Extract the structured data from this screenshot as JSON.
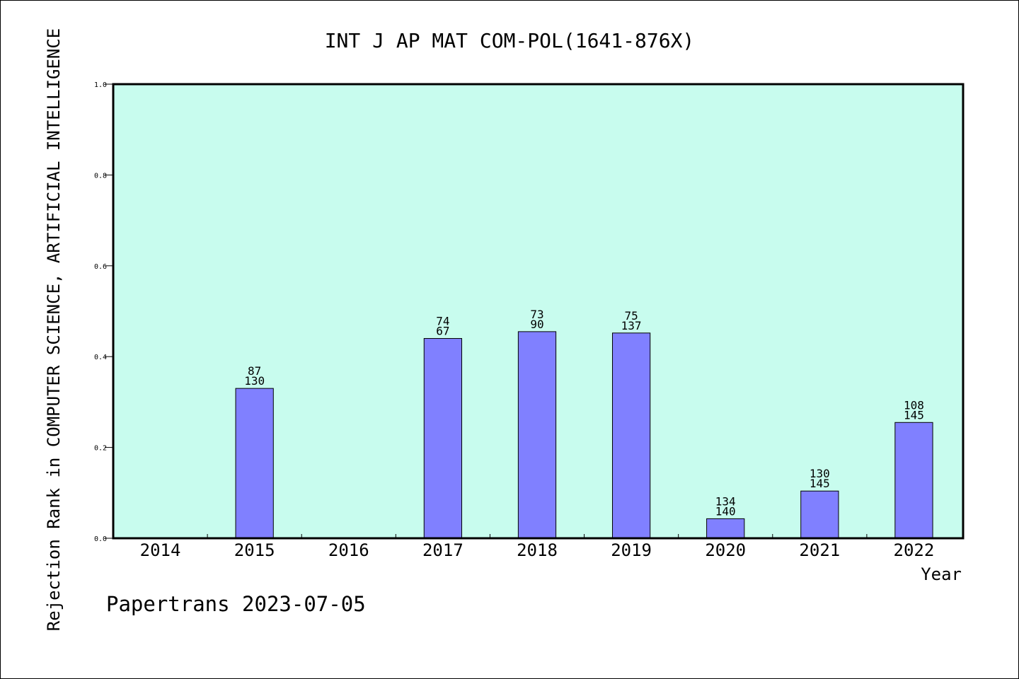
{
  "chart_data": {
    "type": "bar",
    "title": "INT J AP MAT COM-POL(1641-876X)",
    "xlabel": "Year",
    "ylabel": "Rejection Rank in COMPUTER SCIENCE, ARTIFICIAL INTELLIGENCE",
    "ylim": [
      0,
      1.0
    ],
    "yticks": [
      "0.0",
      "0.2",
      "0.4",
      "0.6",
      "0.8",
      "1.0"
    ],
    "categories": [
      "2014",
      "2015",
      "2016",
      "2017",
      "2018",
      "2019",
      "2020",
      "2021",
      "2022"
    ],
    "values": [
      null,
      0.33,
      null,
      0.44,
      0.455,
      0.452,
      0.043,
      0.104,
      0.255
    ],
    "bar_labels": [
      null,
      [
        "87",
        "130"
      ],
      null,
      [
        "74",
        "67"
      ],
      [
        "73",
        "90"
      ],
      [
        "75",
        "137"
      ],
      [
        "134",
        "140"
      ],
      [
        "130",
        "145"
      ],
      [
        "108",
        "145"
      ]
    ],
    "grid": false,
    "colors": {
      "plot_background": "#c8fcee",
      "bar": "#8080ff",
      "bar_stroke": "#000000"
    }
  },
  "footer": "Papertrans 2023-07-05"
}
